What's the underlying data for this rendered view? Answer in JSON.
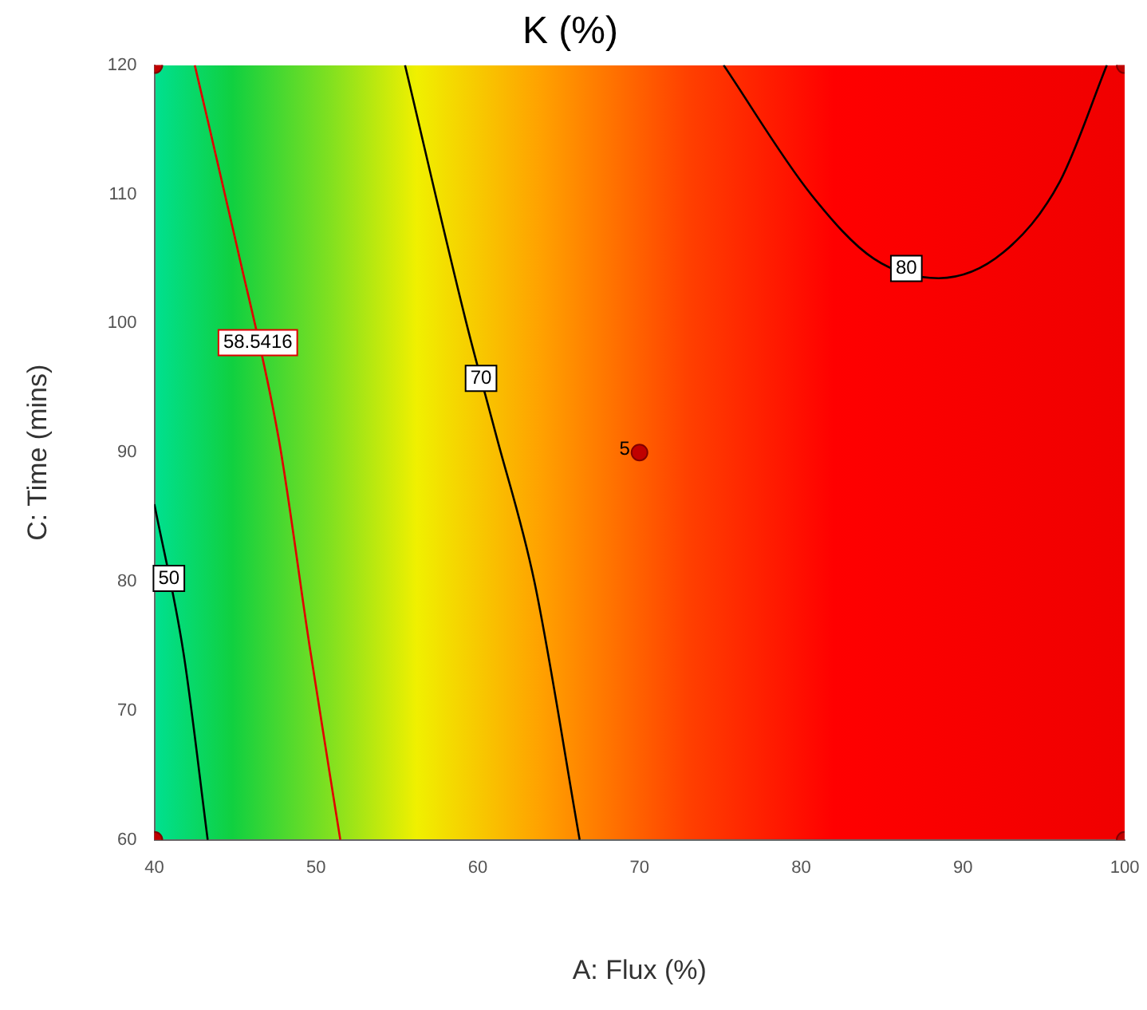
{
  "chart_data": {
    "type": "line",
    "title": "K (%)",
    "xlabel": "A: Flux (%)",
    "ylabel": "C: Time (mins)",
    "xlim": [
      40,
      100
    ],
    "xticks": [
      40,
      50,
      60,
      70,
      80,
      90,
      100
    ],
    "ylim": [
      60,
      120
    ],
    "yticks": [
      60,
      70,
      80,
      90,
      100,
      110,
      120
    ],
    "grid": false,
    "legend": false,
    "series": [
      {
        "name": "50",
        "color": "#000000",
        "x": [
          40,
          41.8,
          43.3
        ],
        "values": [
          86,
          74.5,
          60
        ]
      },
      {
        "name": "58.5416",
        "color": "#e00000",
        "x": [
          42.5,
          45.1,
          47.7,
          49.6,
          51.5
        ],
        "values": [
          120,
          106,
          91,
          75,
          60
        ]
      },
      {
        "name": "70",
        "color": "#000000",
        "x": [
          55.5,
          59.3,
          61.1,
          63.5,
          66.3
        ],
        "values": [
          120,
          100,
          91.5,
          80,
          60
        ]
      },
      {
        "name": "80",
        "color": "#000000",
        "x": [
          75.2,
          80.6,
          84.5,
          88.5,
          92.5,
          96,
          98.9
        ],
        "values": [
          120,
          110,
          105,
          103.5,
          105.5,
          111,
          120
        ]
      },
      {
        "type": "scatter",
        "color": "#c00000",
        "x": [
          40,
          40,
          100,
          100,
          70
        ],
        "values": [
          60,
          120,
          60,
          120,
          90
        ]
      }
    ],
    "annotations": [
      {
        "text": "5",
        "x": 70,
        "y": 90
      }
    ]
  }
}
